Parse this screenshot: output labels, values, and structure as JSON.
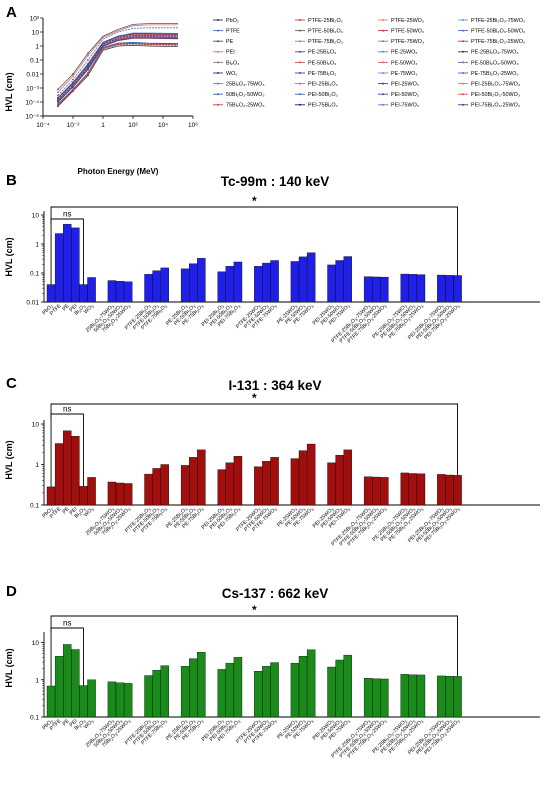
{
  "panel_a": {
    "letter": "A",
    "ylabel": "HVL (cm)",
    "xlabel": "Photon Energy (MeV)",
    "xticks": [
      "10⁻⁴",
      "10⁻²",
      "1",
      "10²",
      "10⁴",
      "10⁶"
    ],
    "yticks": [
      "10⁻⁵",
      "10⁻⁴",
      "10⁻³",
      "0.01",
      "0.1",
      "1",
      "10",
      "10²"
    ]
  },
  "panel_b": {
    "letter": "B",
    "title": "Tc-99m : 140 keV",
    "ylabel": "HVL (cm)",
    "yticks": [
      "0.01",
      "0.1",
      "1",
      "10"
    ],
    "sig_ns": "ns",
    "sig_star": "*"
  },
  "panel_c": {
    "letter": "C",
    "title": "I-131 : 364 keV",
    "ylabel": "HVL (cm)",
    "yticks": [
      "0.1",
      "1",
      "10"
    ],
    "sig_ns": "ns",
    "sig_star": "*"
  },
  "panel_d": {
    "letter": "D",
    "title": "Cs-137 : 662 keV",
    "ylabel": "HVL (cm)",
    "yticks": [
      "0.1",
      "1",
      "10"
    ],
    "sig_ns": "ns",
    "sig_star": "*"
  },
  "chart_data": [
    {
      "type": "line",
      "panel": "A",
      "xlabel": "Photon Energy (MeV)",
      "ylabel": "HVL (cm)",
      "xscale": "log",
      "yscale": "log",
      "xlim": [
        0.0001,
        1000000
      ],
      "ylim": [
        1e-05,
        100
      ],
      "legend_position": "right",
      "x": [
        0.001,
        0.01,
        0.1,
        1,
        10,
        100,
        1000,
        100000
      ],
      "series": [
        {
          "name": "PbO₂",
          "color": "#333333",
          "values": [
            5e-05,
            0.0006,
            0.008,
            0.5,
            1.0,
            1.1,
            1.0,
            0.9
          ]
        },
        {
          "name": "PTFE",
          "color": "#4472c4",
          "values": [
            0.0003,
            0.004,
            0.1,
            3.0,
            10,
            18,
            20,
            20
          ]
        },
        {
          "name": "PE",
          "color": "#555555",
          "values": [
            0.0008,
            0.01,
            0.3,
            5.0,
            15,
            35,
            40,
            40
          ]
        },
        {
          "name": "PEI",
          "color": "#e07070",
          "values": [
            0.0005,
            0.007,
            0.2,
            4.0,
            12,
            28,
            32,
            32
          ]
        },
        {
          "name": "Bi₂O₃",
          "color": "#7f7f7f",
          "values": [
            6e-05,
            0.0007,
            0.01,
            0.6,
            1.2,
            1.3,
            1.2,
            1.1
          ]
        },
        {
          "name": "WO₃",
          "color": "#1f3f7f",
          "values": [
            7e-05,
            0.0008,
            0.012,
            0.8,
            1.6,
            1.8,
            1.6,
            1.5
          ]
        },
        {
          "name": "25Bi₂O₃-75WO₃",
          "color": "#5b7fd6",
          "values": [
            7e-05,
            0.0008,
            0.012,
            0.75,
            1.5,
            1.7,
            1.5,
            1.4
          ]
        },
        {
          "name": "50Bi₂O₃-50WO₃",
          "color": "#3f5fb0",
          "values": [
            7e-05,
            0.0008,
            0.011,
            0.7,
            1.4,
            1.6,
            1.4,
            1.3
          ]
        },
        {
          "name": "75Bi₂O₃-25WO₃",
          "color": "#d04040",
          "values": [
            6e-05,
            0.0007,
            0.011,
            0.65,
            1.3,
            1.5,
            1.3,
            1.2
          ]
        },
        {
          "name": "PTFE-25Bi₂O₃",
          "color": "#e03030",
          "values": [
            0.0002,
            0.002,
            0.04,
            1.5,
            4.0,
            6.0,
            6.0,
            5.5
          ]
        },
        {
          "name": "PTFE-50Bi₂O₃",
          "color": "#606060",
          "values": [
            0.00015,
            0.0015,
            0.03,
            1.2,
            3.0,
            4.5,
            4.5,
            4.0
          ]
        },
        {
          "name": "PTFE-75Bi₂O₃",
          "color": "#6a8fdc",
          "values": [
            0.0001,
            0.0012,
            0.02,
            1.0,
            2.5,
            3.5,
            3.5,
            3.2
          ]
        },
        {
          "name": "PE-25Bi₂O₃",
          "color": "#4a4a9a",
          "values": [
            0.0002,
            0.0025,
            0.05,
            1.8,
            5.0,
            8.0,
            8.0,
            7.5
          ]
        },
        {
          "name": "PE-50Bi₂O₃",
          "color": "#d05050",
          "values": [
            0.00015,
            0.0018,
            0.035,
            1.4,
            3.8,
            6.0,
            6.0,
            5.5
          ]
        },
        {
          "name": "PE-75Bi₂O₃",
          "color": "#2f4f9f",
          "values": [
            0.0001,
            0.0013,
            0.025,
            1.1,
            2.8,
            4.2,
            4.2,
            4.0
          ]
        },
        {
          "name": "PEI-25Bi₂O₃",
          "color": "#e06060",
          "values": [
            0.0002,
            0.0022,
            0.045,
            1.6,
            4.5,
            7.0,
            7.0,
            6.5
          ]
        },
        {
          "name": "PEI-50Bi₂O₃",
          "color": "#3a6ac0",
          "values": [
            0.00015,
            0.0016,
            0.032,
            1.3,
            3.4,
            5.2,
            5.2,
            5.0
          ]
        },
        {
          "name": "PEI-75Bi₂O₃",
          "color": "#202060",
          "values": [
            0.0001,
            0.0012,
            0.022,
            1.0,
            2.6,
            3.8,
            3.8,
            3.6
          ]
        },
        {
          "name": "PTFE-25WO₃",
          "color": "#e08080",
          "values": [
            0.0002,
            0.0022,
            0.045,
            1.6,
            4.2,
            6.5,
            6.5,
            6.0
          ]
        },
        {
          "name": "PTFE-50WO₃",
          "color": "#c83030",
          "values": [
            0.00015,
            0.0017,
            0.033,
            1.3,
            3.3,
            5.0,
            5.0,
            4.6
          ]
        },
        {
          "name": "PTFE-75WO₃",
          "color": "#808080",
          "values": [
            0.00012,
            0.0013,
            0.024,
            1.1,
            2.7,
            3.9,
            3.9,
            3.6
          ]
        },
        {
          "name": "PE-25WO₃",
          "color": "#5a80d0",
          "values": [
            0.0002,
            0.0026,
            0.055,
            1.9,
            5.2,
            8.5,
            8.5,
            8.0
          ]
        },
        {
          "name": "PE-50WO₃",
          "color": "#e05858",
          "values": [
            0.00016,
            0.0019,
            0.038,
            1.5,
            4.0,
            6.3,
            6.3,
            6.0
          ]
        },
        {
          "name": "PE-75WO₃",
          "color": "#708ad8",
          "values": [
            0.00012,
            0.0014,
            0.027,
            1.2,
            3.0,
            4.5,
            4.5,
            4.3
          ]
        },
        {
          "name": "PEI-25WO₃",
          "color": "#404070",
          "values": [
            0.0002,
            0.0023,
            0.048,
            1.7,
            4.7,
            7.4,
            7.4,
            7.0
          ]
        },
        {
          "name": "PEI-50WO₃",
          "color": "#3050a0",
          "values": [
            0.00015,
            0.0017,
            0.034,
            1.35,
            3.6,
            5.5,
            5.5,
            5.2
          ]
        },
        {
          "name": "PEI-75WO₃",
          "color": "#6078c8",
          "values": [
            0.00011,
            0.0013,
            0.024,
            1.05,
            2.7,
            4.0,
            4.0,
            3.8
          ]
        },
        {
          "name": "PTFE-25Bi₂O₃-75WO₃",
          "color": "#50a0c0",
          "values": [
            0.00012,
            0.0013,
            0.023,
            1.0,
            2.6,
            3.8,
            3.8,
            3.5
          ]
        },
        {
          "name": "PTFE-50Bi₂O₃-50WO₃",
          "color": "#4868b8",
          "values": [
            0.00012,
            0.0013,
            0.022,
            1.0,
            2.5,
            3.7,
            3.7,
            3.4
          ]
        },
        {
          "name": "PTFE-75Bi₂O₃-25WO₃",
          "color": "#d03838",
          "values": [
            0.00011,
            0.0012,
            0.022,
            0.95,
            2.4,
            3.6,
            3.6,
            3.3
          ]
        },
        {
          "name": "PE-25Bi₂O₃-75WO₃",
          "color": "#383838",
          "values": [
            0.00013,
            0.0014,
            0.026,
            1.1,
            2.9,
            4.3,
            4.3,
            4.0
          ]
        },
        {
          "name": "PE-50Bi₂O₃-50WO₃",
          "color": "#6a6aa0",
          "values": [
            0.00013,
            0.0014,
            0.025,
            1.05,
            2.8,
            4.2,
            4.2,
            3.9
          ]
        },
        {
          "name": "PE-75Bi₂O₃-25WO₃",
          "color": "#3f6fbf",
          "values": [
            0.00012,
            0.0013,
            0.024,
            1.0,
            2.7,
            4.0,
            4.0,
            3.8
          ]
        },
        {
          "name": "PEI-25Bi₂O₃-75WO₃",
          "color": "#e07878",
          "values": [
            0.00012,
            0.0013,
            0.024,
            1.05,
            2.75,
            4.1,
            4.1,
            3.8
          ]
        },
        {
          "name": "PEI-50Bi₂O₃-50WO₃",
          "color": "#e04848",
          "values": [
            0.00012,
            0.0013,
            0.023,
            1.0,
            2.65,
            3.9,
            3.9,
            3.7
          ]
        },
        {
          "name": "PEI-75Bi₂O₃-25WO₃",
          "color": "#304888",
          "values": [
            0.00011,
            0.0012,
            0.023,
            0.98,
            2.55,
            3.8,
            3.8,
            3.6
          ]
        }
      ]
    },
    {
      "type": "bar",
      "panel": "B",
      "title": "Tc-99m : 140 keV",
      "ylabel": "HVL (cm)",
      "yscale": "log",
      "ylim": [
        0.01,
        10
      ],
      "color": "#1f1fe6",
      "annotations": [
        "ns",
        "*"
      ],
      "categories": [
        "PbO₂",
        "PTFE",
        "PE",
        "PEI",
        "Bi₂O₃",
        "WO₃",
        "25Bi₂O₃-75WO₃",
        "50Bi₂O₃-50WO₃",
        "75Bi₂O₃-25WO₃",
        "PTFE-25Bi₂O₃",
        "PTFE-50Bi₂O₃",
        "PTFE-75Bi₂O₃",
        "PE-25Bi₂O₃",
        "PE-50Bi₂O₃",
        "PE-75Bi₂O₃",
        "PEI-25Bi₂O₃",
        "PEI-50Bi₂O₃",
        "PEI-75Bi₂O₃",
        "PTFE-25WO₃",
        "PTFE-50WO₃",
        "PTFE-75WO₃",
        "PE-25WO₃",
        "PE-50WO₃",
        "PE-75WO₃",
        "PEI-25WO₃",
        "PEI-50WO₃",
        "PEI-75WO₃",
        "PTFE-25Bi₂O₃-75WO₃",
        "PTFE-50Bi₂O₃-50WO₃",
        "PTFE-75Bi₂O₃-25WO₃",
        "PE-25Bi₂O₃-75WO₃",
        "PE-50Bi₂O₃-50WO₃",
        "PE-75Bi₂O₃-25WO₃",
        "PEI-25Bi₂O₃-75WO₃",
        "PEI-50Bi₂O₃-50WO₃",
        "PEI-75Bi₂O₃-25WO₃"
      ],
      "values": [
        0.04,
        2.3,
        4.8,
        3.6,
        0.04,
        0.07,
        0.055,
        0.052,
        0.05,
        0.09,
        0.12,
        0.15,
        0.14,
        0.21,
        0.32,
        0.11,
        0.17,
        0.24,
        0.17,
        0.22,
        0.27,
        0.25,
        0.36,
        0.5,
        0.19,
        0.27,
        0.37,
        0.075,
        0.073,
        0.072,
        0.092,
        0.09,
        0.088,
        0.085,
        0.083,
        0.082
      ]
    },
    {
      "type": "bar",
      "panel": "C",
      "title": "I-131 : 364 keV",
      "ylabel": "HVL (cm)",
      "yscale": "log",
      "ylim": [
        0.1,
        10
      ],
      "color": "#a10e0e",
      "annotations": [
        "ns",
        "*"
      ],
      "categories": [
        "PbO₂",
        "PTFE",
        "PE",
        "PEI",
        "Bi₂O₃",
        "WO₃",
        "25Bi₂O₃-75WO₃",
        "50Bi₂O₃-50WO₃",
        "75Bi₂O₃-25WO₃",
        "PTFE-25Bi₂O₃",
        "PTFE-50Bi₂O₃",
        "PTFE-75Bi₂O₃",
        "PE-25Bi₂O₃",
        "PE-50Bi₂O₃",
        "PE-75Bi₂O₃",
        "PEI-25Bi₂O₃",
        "PEI-50Bi₂O₃",
        "PEI-75Bi₂O₃",
        "PTFE-25WO₃",
        "PTFE-50WO₃",
        "PTFE-75WO₃",
        "PE-25WO₃",
        "PE-50WO₃",
        "PE-75WO₃",
        "PEI-25WO₃",
        "PEI-50WO₃",
        "PEI-75WO₃",
        "PTFE-25Bi₂O₃-75WO₃",
        "PTFE-50Bi₂O₃-50WO₃",
        "PTFE-75Bi₂O₃-25WO₃",
        "PE-25Bi₂O₃-75WO₃",
        "PE-50Bi₂O₃-50WO₃",
        "PE-75Bi₂O₃-25WO₃",
        "PEI-25Bi₂O₃-75WO₃",
        "PEI-50Bi₂O₃-50WO₃",
        "PEI-75Bi₂O₃-25WO₃"
      ],
      "values": [
        0.28,
        3.3,
        6.8,
        5.0,
        0.29,
        0.48,
        0.37,
        0.35,
        0.34,
        0.58,
        0.8,
        1.0,
        0.95,
        1.5,
        2.3,
        0.75,
        1.1,
        1.6,
        0.88,
        1.2,
        1.5,
        1.4,
        2.2,
        3.2,
        1.1,
        1.7,
        2.3,
        0.5,
        0.49,
        0.48,
        0.62,
        0.6,
        0.59,
        0.57,
        0.55,
        0.54
      ]
    },
    {
      "type": "bar",
      "panel": "D",
      "title": "Cs-137 : 662 keV",
      "ylabel": "HVL (cm)",
      "yscale": "log",
      "ylim": [
        0.1,
        15
      ],
      "color": "#1a8a1a",
      "annotations": [
        "ns",
        "*"
      ],
      "categories": [
        "PbO₂",
        "PTFE",
        "PE",
        "PEI",
        "Bi₂O₃",
        "WO₃",
        "25Bi₂O₃-75WO₃",
        "50Bi₂O₃-50WO₃",
        "75Bi₂O₃-25WO₃",
        "PTFE-25Bi₂O₃",
        "PTFE-50Bi₂O₃",
        "PTFE-75Bi₂O₃",
        "PE-25Bi₂O₃",
        "PE-50Bi₂O₃",
        "PE-75Bi₂O₃",
        "PEI-25Bi₂O₃",
        "PEI-50Bi₂O₃",
        "PEI-75Bi₂O₃",
        "PTFE-25WO₃",
        "PTFE-50WO₃",
        "PTFE-75WO₃",
        "PE-25WO₃",
        "PE-50WO₃",
        "PE-75WO₃",
        "PEI-25WO₃",
        "PEI-50WO₃",
        "PEI-75WO₃",
        "PTFE-25Bi₂O₃-75WO₃",
        "PTFE-50Bi₂O₃-50WO₃",
        "PTFE-75Bi₂O₃-25WO₃",
        "PE-25Bi₂O₃-75WO₃",
        "PE-50Bi₂O₃-50WO₃",
        "PE-75Bi₂O₃-25WO₃",
        "PEI-25Bi₂O₃-75WO₃",
        "PEI-50Bi₂O₃-50WO₃",
        "PEI-75Bi₂O₃-25WO₃"
      ],
      "values": [
        0.68,
        4.3,
        8.9,
        6.5,
        0.7,
        1.0,
        0.88,
        0.83,
        0.8,
        1.3,
        1.8,
        2.4,
        2.3,
        3.7,
        5.5,
        1.9,
        2.8,
        4.0,
        1.7,
        2.3,
        2.9,
        2.8,
        4.3,
        6.4,
        2.2,
        3.4,
        4.6,
        1.1,
        1.07,
        1.05,
        1.4,
        1.37,
        1.35,
        1.27,
        1.25,
        1.23
      ]
    }
  ]
}
